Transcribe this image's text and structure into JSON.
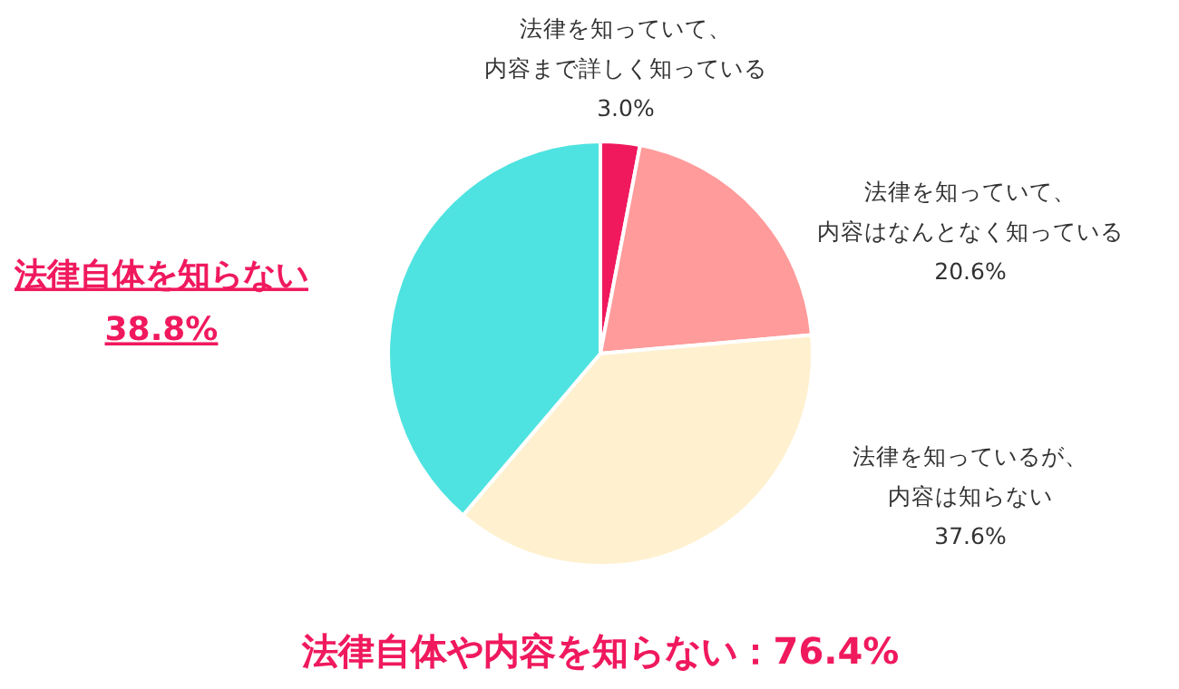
{
  "chart_data": {
    "type": "pie",
    "categories": [
      "法律を知っていて、内容まで詳しく知っている",
      "法律を知っていて、内容はなんとなく知っている",
      "法律を知っているが、内容は知らない",
      "法律自体を知らない"
    ],
    "values": [
      3.0,
      20.6,
      37.6,
      38.8
    ],
    "value_labels": [
      "3.0%",
      "20.6%",
      "37.6%",
      "38.8%"
    ],
    "colors": [
      "#f0195e",
      "#ff9b9b",
      "#fff1cf",
      "#4ee3e0"
    ],
    "annotations": [
      "法律自体や内容を知らない：76.4%"
    ]
  }
}
